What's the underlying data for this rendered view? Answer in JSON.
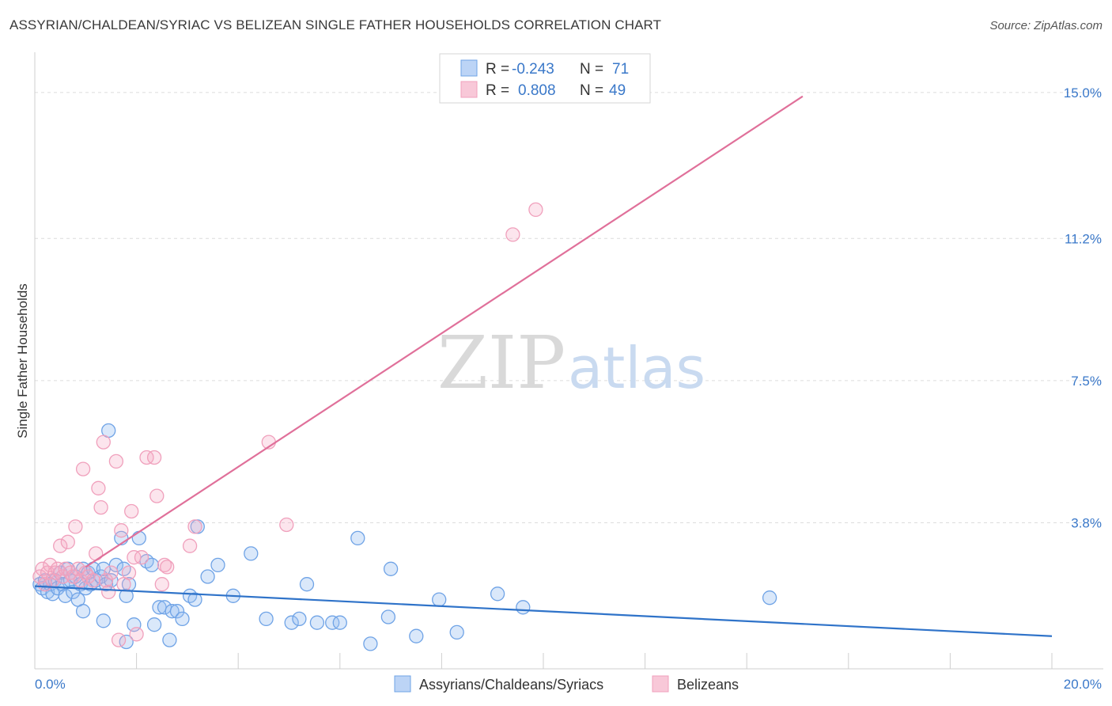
{
  "title": "ASSYRIAN/CHALDEAN/SYRIAC VS BELIZEAN SINGLE FATHER HOUSEHOLDS CORRELATION CHART",
  "source": "Source: ZipAtlas.com",
  "watermark": {
    "zip": "ZIP",
    "atlas": "atlas"
  },
  "legend_box": {
    "rows": [
      {
        "r_label": "R =",
        "r_value": "-0.243",
        "n_label": "N =",
        "n_value": "71"
      },
      {
        "r_label": "R =",
        "r_value": "0.808",
        "n_label": "N =",
        "n_value": "49"
      }
    ]
  },
  "chart_data": {
    "type": "scatter",
    "title": "ASSYRIAN/CHALDEAN/SYRIAC VS BELIZEAN SINGLE FATHER HOUSEHOLDS CORRELATION CHART",
    "xlabel": "",
    "ylabel": "Single Father Households",
    "xlim": [
      0,
      20
    ],
    "ylim": [
      0,
      15.8
    ],
    "x_tick_labels": [
      "0.0%",
      "20.0%"
    ],
    "y_ticks": [
      3.8,
      7.5,
      11.2,
      15.0
    ],
    "y_tick_labels": [
      "3.8%",
      "7.5%",
      "11.2%",
      "15.0%"
    ],
    "grid": true,
    "legend_position": "bottom-center",
    "colors": {
      "blue": "#6fa3e6",
      "blue_line": "#2f73c9",
      "pink": "#f0a0bc",
      "pink_line": "#e0709a"
    },
    "series": [
      {
        "name": "Assyrians/Chaldeans/Syriacs",
        "color": "#6fa3e6",
        "trend": {
          "x1": 0,
          "y1": 2.15,
          "x2": 20,
          "y2": 0.85
        },
        "points": [
          [
            0.1,
            2.2
          ],
          [
            0.15,
            2.1
          ],
          [
            0.2,
            2.3
          ],
          [
            0.25,
            2.0
          ],
          [
            0.3,
            2.2
          ],
          [
            0.35,
            1.95
          ],
          [
            0.4,
            2.3
          ],
          [
            0.45,
            2.1
          ],
          [
            0.5,
            2.5
          ],
          [
            0.55,
            2.2
          ],
          [
            0.6,
            1.9
          ],
          [
            0.65,
            2.6
          ],
          [
            0.7,
            2.3
          ],
          [
            0.75,
            2.0
          ],
          [
            0.8,
            2.4
          ],
          [
            0.85,
            1.8
          ],
          [
            0.9,
            2.2
          ],
          [
            0.95,
            2.6
          ],
          [
            1.0,
            2.1
          ],
          [
            1.05,
            2.5
          ],
          [
            1.1,
            2.2
          ],
          [
            1.15,
            2.6
          ],
          [
            1.2,
            2.3
          ],
          [
            1.3,
            2.4
          ],
          [
            1.35,
            2.6
          ],
          [
            1.4,
            2.2
          ],
          [
            1.5,
            2.3
          ],
          [
            1.6,
            2.7
          ],
          [
            1.7,
            3.4
          ],
          [
            1.75,
            2.6
          ],
          [
            1.8,
            1.9
          ],
          [
            1.85,
            2.2
          ],
          [
            2.05,
            3.4
          ],
          [
            2.2,
            2.8
          ],
          [
            2.3,
            2.7
          ],
          [
            2.45,
            1.6
          ],
          [
            2.55,
            1.6
          ],
          [
            2.7,
            1.5
          ],
          [
            2.8,
            1.5
          ],
          [
            2.9,
            1.3
          ],
          [
            3.05,
            1.9
          ],
          [
            3.15,
            1.8
          ],
          [
            3.2,
            3.7
          ],
          [
            3.4,
            2.4
          ],
          [
            3.6,
            2.7
          ],
          [
            3.9,
            1.9
          ],
          [
            4.25,
            3.0
          ],
          [
            4.55,
            1.3
          ],
          [
            5.05,
            1.2
          ],
          [
            5.2,
            1.3
          ],
          [
            5.35,
            2.2
          ],
          [
            5.55,
            1.2
          ],
          [
            5.85,
            1.2
          ],
          [
            6.0,
            1.2
          ],
          [
            6.35,
            3.4
          ],
          [
            6.6,
            0.65
          ],
          [
            6.95,
            1.35
          ],
          [
            7.0,
            2.6
          ],
          [
            7.5,
            0.85
          ],
          [
            7.95,
            1.8
          ],
          [
            8.3,
            0.95
          ],
          [
            9.1,
            1.95
          ],
          [
            9.6,
            1.6
          ],
          [
            14.45,
            1.85
          ],
          [
            1.45,
            6.2
          ],
          [
            0.95,
            1.5
          ],
          [
            1.35,
            1.25
          ],
          [
            1.8,
            0.7
          ],
          [
            2.65,
            0.75
          ],
          [
            1.95,
            1.15
          ],
          [
            2.35,
            1.15
          ]
        ]
      },
      {
        "name": "Belizeans",
        "color": "#f0a0bc",
        "trend": {
          "x1": 1.0,
          "y1": 2.65,
          "x2": 15.1,
          "y2": 14.9
        },
        "points": [
          [
            0.1,
            2.4
          ],
          [
            0.15,
            2.6
          ],
          [
            0.2,
            2.2
          ],
          [
            0.25,
            2.5
          ],
          [
            0.3,
            2.7
          ],
          [
            0.35,
            2.3
          ],
          [
            0.4,
            2.5
          ],
          [
            0.45,
            2.6
          ],
          [
            0.5,
            3.2
          ],
          [
            0.55,
            2.4
          ],
          [
            0.6,
            2.6
          ],
          [
            0.65,
            3.3
          ],
          [
            0.7,
            2.5
          ],
          [
            0.75,
            2.4
          ],
          [
            0.8,
            3.7
          ],
          [
            0.85,
            2.6
          ],
          [
            0.9,
            2.3
          ],
          [
            0.95,
            5.2
          ],
          [
            1.0,
            2.5
          ],
          [
            1.05,
            2.4
          ],
          [
            1.15,
            2.3
          ],
          [
            1.2,
            3.0
          ],
          [
            1.25,
            4.7
          ],
          [
            1.3,
            4.2
          ],
          [
            1.35,
            5.9
          ],
          [
            1.4,
            2.3
          ],
          [
            1.45,
            2.0
          ],
          [
            1.5,
            2.5
          ],
          [
            1.6,
            5.4
          ],
          [
            1.65,
            0.75
          ],
          [
            1.7,
            3.6
          ],
          [
            1.75,
            2.2
          ],
          [
            1.85,
            2.5
          ],
          [
            1.9,
            4.1
          ],
          [
            1.95,
            2.9
          ],
          [
            2.0,
            0.9
          ],
          [
            2.1,
            2.9
          ],
          [
            2.2,
            5.5
          ],
          [
            2.35,
            5.5
          ],
          [
            2.4,
            4.5
          ],
          [
            2.5,
            2.2
          ],
          [
            2.55,
            2.7
          ],
          [
            3.05,
            3.2
          ],
          [
            3.15,
            3.7
          ],
          [
            4.6,
            5.9
          ],
          [
            4.95,
            3.75
          ],
          [
            9.4,
            11.3
          ],
          [
            9.85,
            11.95
          ],
          [
            2.6,
            2.65
          ]
        ]
      }
    ]
  }
}
